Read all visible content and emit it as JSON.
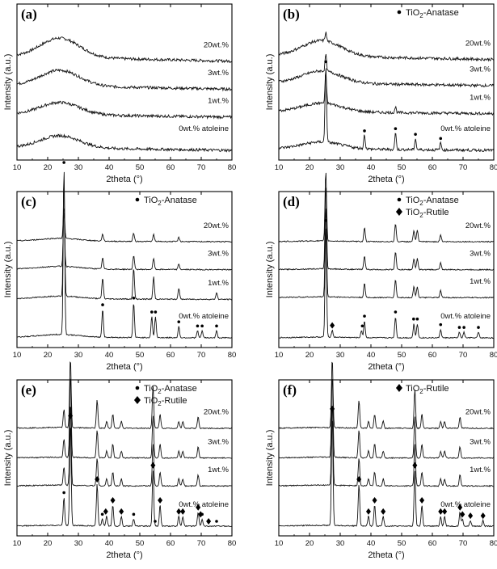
{
  "chart_data": [
    {
      "panel": "(a)",
      "type": "line",
      "xlabel": "2theta (°)",
      "ylabel": "Intensity (a.u.)",
      "xlim": [
        10,
        80
      ],
      "xticks": [
        10,
        20,
        30,
        40,
        50,
        60,
        70,
        80
      ],
      "legend": [],
      "series": [
        {
          "name": "20wt.%",
          "offset": 2.55,
          "amorph": 0.55,
          "peaks": []
        },
        {
          "name": "3wt.%",
          "offset": 1.75,
          "amorph": 0.45,
          "peaks": []
        },
        {
          "name": "1wt.%",
          "offset": 0.95,
          "amorph": 0.35,
          "peaks": []
        },
        {
          "name": "0wt.% atoleine",
          "offset": 0.0,
          "amorph": 0.35,
          "peaks": []
        }
      ],
      "markers": []
    },
    {
      "panel": "(b)",
      "type": "line",
      "xlabel": "2theta (°)",
      "ylabel": "Intensity (a.u.)",
      "xlim": [
        10,
        80
      ],
      "xticks": [
        10,
        20,
        30,
        40,
        50,
        60,
        70,
        80
      ],
      "legend": [
        {
          "symbol": "dot",
          "text": "TiO",
          "sub": "2",
          "rest": "-Anatase"
        }
      ],
      "series": [
        {
          "name": "20wt.%",
          "offset": 2.6,
          "amorph": 0.45,
          "peaks": [
            [
              25.3,
              0.06
            ]
          ]
        },
        {
          "name": "3wt.%",
          "offset": 1.85,
          "amorph": 0.35,
          "peaks": [
            [
              25.3,
              0.12
            ]
          ]
        },
        {
          "name": "1wt.%",
          "offset": 1.05,
          "amorph": 0.25,
          "peaks": [
            [
              25.3,
              0.22
            ],
            [
              48.0,
              0.04
            ]
          ]
        },
        {
          "name": "0wt.% atoleine",
          "offset": 0.0,
          "amorph": 0.2,
          "peaks": [
            [
              25.3,
              0.55
            ],
            [
              37.9,
              0.1
            ],
            [
              48.0,
              0.12
            ],
            [
              54.5,
              0.08
            ],
            [
              62.7,
              0.05
            ]
          ]
        }
      ],
      "markers": [
        {
          "type": "anatase",
          "x": [
            25.3,
            37.9,
            48.0,
            54.5,
            62.7
          ]
        }
      ]
    },
    {
      "panel": "(c)",
      "type": "line",
      "xlabel": "2theta (°)",
      "ylabel": "Intensity (a.u.)",
      "xlim": [
        10,
        80
      ],
      "xticks": [
        10,
        20,
        30,
        40,
        50,
        60,
        70,
        80
      ],
      "legend": [
        {
          "symbol": "dot",
          "text": "TiO",
          "sub": "2",
          "rest": "-Anatase"
        }
      ],
      "series": [
        {
          "name": "20wt.%",
          "offset": 2.75,
          "amorph": 0.08,
          "peaks": [
            [
              25.3,
              0.22
            ],
            [
              37.9,
              0.05
            ],
            [
              48.0,
              0.06
            ],
            [
              54.5,
              0.05
            ],
            [
              62.7,
              0.03
            ]
          ]
        },
        {
          "name": "3wt.%",
          "offset": 1.95,
          "amorph": 0.08,
          "peaks": [
            [
              25.3,
              0.4
            ],
            [
              37.9,
              0.08
            ],
            [
              48.0,
              0.1
            ],
            [
              54.5,
              0.08
            ],
            [
              62.7,
              0.04
            ]
          ]
        },
        {
          "name": "1wt.%",
          "offset": 1.1,
          "amorph": 0.08,
          "peaks": [
            [
              25.3,
              0.85
            ],
            [
              37.9,
              0.15
            ],
            [
              48.0,
              0.22
            ],
            [
              54.5,
              0.16
            ],
            [
              62.7,
              0.08
            ],
            [
              75.0,
              0.05
            ]
          ]
        },
        {
          "name": "0wt.% atoleine",
          "offset": 0.0,
          "amorph": 0.08,
          "peaks": [
            [
              25.3,
              1.2
            ],
            [
              37.9,
              0.2
            ],
            [
              48.0,
              0.25
            ],
            [
              53.9,
              0.15
            ],
            [
              55.1,
              0.15
            ],
            [
              62.7,
              0.08
            ],
            [
              68.8,
              0.05
            ],
            [
              70.3,
              0.05
            ],
            [
              75.0,
              0.05
            ]
          ]
        }
      ],
      "markers": [
        {
          "type": "anatase",
          "x": [
            25.3,
            37.9,
            48.0,
            53.9,
            55.1,
            62.7,
            68.8,
            70.3,
            75.0
          ]
        }
      ]
    },
    {
      "panel": "(d)",
      "type": "line",
      "xlabel": "2theta (°)",
      "ylabel": "Intensity (a.u.)",
      "xlim": [
        10,
        80
      ],
      "xticks": [
        10,
        20,
        30,
        40,
        50,
        60,
        70,
        80
      ],
      "legend": [
        {
          "symbol": "dot",
          "text": "TiO",
          "sub": "2",
          "rest": "-Anatase"
        },
        {
          "symbol": "diamond",
          "text": "TiO",
          "sub": "2",
          "rest": "-Rutile"
        }
      ],
      "series": [
        {
          "name": "20wt.%",
          "offset": 2.75,
          "amorph": 0.02,
          "peaks": [
            [
              25.3,
              0.5
            ],
            [
              37.9,
              0.1
            ],
            [
              48.0,
              0.13
            ],
            [
              54.0,
              0.08
            ],
            [
              55.1,
              0.08
            ],
            [
              62.7,
              0.05
            ]
          ]
        },
        {
          "name": "3wt.%",
          "offset": 1.95,
          "amorph": 0.02,
          "peaks": [
            [
              25.3,
              0.6
            ],
            [
              37.9,
              0.1
            ],
            [
              48.0,
              0.13
            ],
            [
              54.0,
              0.08
            ],
            [
              55.1,
              0.08
            ],
            [
              62.7,
              0.05
            ]
          ]
        },
        {
          "name": "1wt.%",
          "offset": 1.15,
          "amorph": 0.02,
          "peaks": [
            [
              25.3,
              0.65
            ],
            [
              37.9,
              0.1
            ],
            [
              48.0,
              0.13
            ],
            [
              54.0,
              0.08
            ],
            [
              55.1,
              0.08
            ],
            [
              62.7,
              0.05
            ]
          ]
        },
        {
          "name": "0wt.% atoleine",
          "offset": 0.0,
          "amorph": 0.02,
          "peaks": [
            [
              25.3,
              0.8
            ],
            [
              27.4,
              0.05
            ],
            [
              36.9,
              0.05
            ],
            [
              37.9,
              0.12
            ],
            [
              48.0,
              0.15
            ],
            [
              54.0,
              0.1
            ],
            [
              55.1,
              0.1
            ],
            [
              62.7,
              0.06
            ],
            [
              68.8,
              0.04
            ],
            [
              70.3,
              0.04
            ],
            [
              75.0,
              0.04
            ]
          ]
        }
      ],
      "markers": [
        {
          "type": "anatase",
          "x": [
            25.3,
            37.2,
            37.9,
            48.0,
            53.9,
            55.1,
            62.7,
            68.8,
            70.3,
            75.0
          ]
        },
        {
          "type": "rutile",
          "x": [
            27.4
          ]
        }
      ]
    },
    {
      "panel": "(e)",
      "type": "line",
      "xlabel": "2theta (°)",
      "ylabel": "Intensity (a.u.)",
      "xlim": [
        10,
        80
      ],
      "xticks": [
        10,
        20,
        30,
        40,
        50,
        60,
        70,
        80
      ],
      "legend": [
        {
          "symbol": "dot",
          "text": "TiO",
          "sub": "2",
          "rest": "-Anatase"
        },
        {
          "symbol": "diamond",
          "text": "TiO",
          "sub": "2",
          "rest": "-Rutile"
        }
      ],
      "series": [
        {
          "name": "20wt.%",
          "offset": 2.8,
          "amorph": 0.02,
          "peaks": [
            [
              25.3,
              0.13
            ],
            [
              27.4,
              0.5
            ],
            [
              36.1,
              0.2
            ],
            [
              39.2,
              0.05
            ],
            [
              41.2,
              0.1
            ],
            [
              44.0,
              0.05
            ],
            [
              54.3,
              0.3
            ],
            [
              56.6,
              0.1
            ],
            [
              62.7,
              0.05
            ],
            [
              64.0,
              0.05
            ],
            [
              69.0,
              0.08
            ]
          ]
        },
        {
          "name": "3wt.%",
          "offset": 1.95,
          "amorph": 0.02,
          "peaks": [
            [
              25.3,
              0.13
            ],
            [
              27.4,
              0.6
            ],
            [
              36.1,
              0.2
            ],
            [
              39.2,
              0.05
            ],
            [
              41.2,
              0.1
            ],
            [
              44.0,
              0.05
            ],
            [
              54.3,
              0.3
            ],
            [
              56.6,
              0.1
            ],
            [
              62.7,
              0.05
            ],
            [
              64.0,
              0.05
            ],
            [
              69.0,
              0.08
            ]
          ]
        },
        {
          "name": "1wt.%",
          "offset": 1.15,
          "amorph": 0.02,
          "peaks": [
            [
              25.3,
              0.13
            ],
            [
              27.4,
              0.6
            ],
            [
              36.1,
              0.2
            ],
            [
              39.2,
              0.05
            ],
            [
              41.2,
              0.1
            ],
            [
              44.0,
              0.05
            ],
            [
              54.3,
              0.3
            ],
            [
              56.6,
              0.1
            ],
            [
              62.7,
              0.05
            ],
            [
              64.0,
              0.05
            ],
            [
              69.0,
              0.08
            ]
          ]
        },
        {
          "name": "0wt.% atoleine",
          "offset": 0.0,
          "amorph": 0.02,
          "peaks": [
            [
              25.3,
              0.2
            ],
            [
              27.4,
              0.75
            ],
            [
              36.1,
              0.3
            ],
            [
              37.8,
              0.05
            ],
            [
              39.2,
              0.07
            ],
            [
              41.2,
              0.15
            ],
            [
              44.0,
              0.07
            ],
            [
              48.0,
              0.05
            ],
            [
              54.3,
              0.4
            ],
            [
              56.6,
              0.15
            ],
            [
              62.7,
              0.07
            ],
            [
              64.0,
              0.07
            ],
            [
              69.0,
              0.1
            ],
            [
              70.3,
              0.05
            ]
          ]
        }
      ],
      "markers": [
        {
          "type": "anatase",
          "x": [
            25.3,
            37.8,
            48.0,
            55.0,
            62.7,
            70.3,
            75.0
          ]
        },
        {
          "type": "rutile",
          "x": [
            27.4,
            36.1,
            38.9,
            41.2,
            44.0,
            54.3,
            56.6,
            62.7,
            64.0,
            69.0,
            69.8,
            72.4
          ]
        }
      ]
    },
    {
      "panel": "(f)",
      "type": "line",
      "xlabel": "2theta (°)",
      "ylabel": "Intensity (a.u.)",
      "xlim": [
        10,
        80
      ],
      "xticks": [
        10,
        20,
        30,
        40,
        50,
        60,
        70,
        80
      ],
      "legend": [
        {
          "symbol": "diamond",
          "text": "TiO",
          "sub": "2",
          "rest": "-Rutile"
        }
      ],
      "series": [
        {
          "name": "20wt.%",
          "offset": 2.8,
          "amorph": 0.02,
          "peaks": [
            [
              27.4,
              0.5
            ],
            [
              36.1,
              0.2
            ],
            [
              39.2,
              0.05
            ],
            [
              41.2,
              0.1
            ],
            [
              44.0,
              0.05
            ],
            [
              54.3,
              0.28
            ],
            [
              56.6,
              0.1
            ],
            [
              62.7,
              0.05
            ],
            [
              64.0,
              0.05
            ],
            [
              69.0,
              0.08
            ]
          ]
        },
        {
          "name": "3wt.%",
          "offset": 1.95,
          "amorph": 0.02,
          "peaks": [
            [
              27.4,
              0.6
            ],
            [
              36.1,
              0.2
            ],
            [
              39.2,
              0.05
            ],
            [
              41.2,
              0.1
            ],
            [
              44.0,
              0.05
            ],
            [
              54.3,
              0.3
            ],
            [
              56.6,
              0.1
            ],
            [
              62.7,
              0.05
            ],
            [
              64.0,
              0.05
            ],
            [
              69.0,
              0.08
            ]
          ]
        },
        {
          "name": "1wt.%",
          "offset": 1.15,
          "amorph": 0.02,
          "peaks": [
            [
              27.4,
              0.6
            ],
            [
              36.1,
              0.2
            ],
            [
              39.2,
              0.05
            ],
            [
              41.2,
              0.1
            ],
            [
              44.0,
              0.05
            ],
            [
              54.3,
              0.3
            ],
            [
              56.6,
              0.1
            ],
            [
              62.7,
              0.05
            ],
            [
              64.0,
              0.05
            ],
            [
              69.0,
              0.08
            ]
          ]
        },
        {
          "name": "0wt.% atoleine",
          "offset": 0.0,
          "amorph": 0.02,
          "peaks": [
            [
              27.4,
              0.8
            ],
            [
              36.1,
              0.3
            ],
            [
              39.2,
              0.07
            ],
            [
              41.2,
              0.15
            ],
            [
              44.0,
              0.07
            ],
            [
              54.3,
              0.4
            ],
            [
              56.6,
              0.15
            ],
            [
              62.7,
              0.07
            ],
            [
              64.0,
              0.07
            ],
            [
              69.0,
              0.1
            ],
            [
              69.8,
              0.05
            ],
            [
              72.4,
              0.04
            ],
            [
              76.5,
              0.04
            ]
          ]
        }
      ],
      "markers": [
        {
          "type": "rutile",
          "x": [
            27.4,
            36.1,
            39.2,
            41.2,
            44.0,
            54.3,
            56.6,
            62.7,
            64.0,
            69.0,
            69.8,
            72.4,
            76.5
          ]
        }
      ]
    }
  ]
}
